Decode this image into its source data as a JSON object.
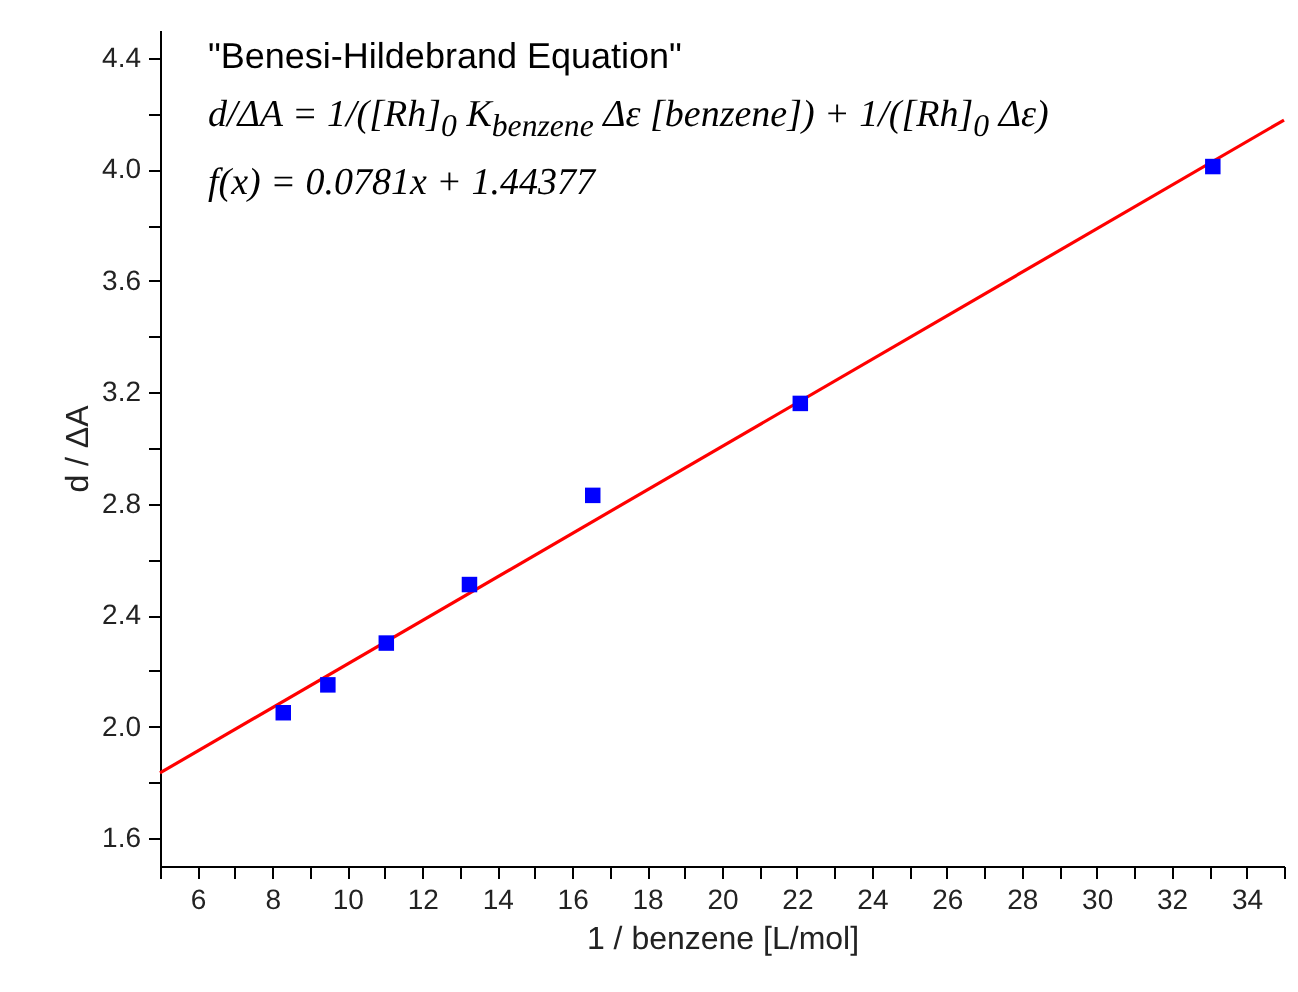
{
  "chart_data": {
    "type": "scatter",
    "xlabel": "1 / benzene [L/mol]",
    "ylabel": "d / ΔA",
    "annotations": [
      "\"Benesi-Hildebrand Equation\"",
      "d/ΔA = 1/([Rh]$_{0}$ K$_{benzene}$ Δε [benzene]) + 1/([Rh]$_{0}$ Δε)",
      "f(x) = 0.0781x + 1.44377"
    ],
    "series": [
      {
        "type": "scatter",
        "color": "#0000ff",
        "marker": "square",
        "x": [
          8.29,
          9.48,
          11.04,
          13.26,
          16.55,
          22.09,
          33.1
        ],
        "values": [
          2.05,
          2.15,
          2.3,
          2.51,
          2.83,
          3.16,
          4.01
        ]
      },
      {
        "type": "line",
        "color": "#ff0000",
        "line_style": "solid",
        "x": [
          5,
          35
        ],
        "values": [
          1.834,
          4.177
        ]
      }
    ],
    "xlim": [
      5,
      35
    ],
    "ylim": [
      1.5,
      4.5
    ],
    "xticks": [
      {
        "value": 5,
        "label": null
      },
      6,
      {
        "value": 7,
        "label": null
      },
      8,
      {
        "value": 9,
        "label": null
      },
      10,
      {
        "value": 11,
        "label": null
      },
      12,
      {
        "value": 13,
        "label": null
      },
      14,
      {
        "value": 15,
        "label": null
      },
      16,
      {
        "value": 17,
        "label": null
      },
      18,
      {
        "value": 19,
        "label": null
      },
      20,
      {
        "value": 21,
        "label": null
      },
      22,
      {
        "value": 23,
        "label": null
      },
      24,
      {
        "value": 25,
        "label": null
      },
      26,
      {
        "value": 27,
        "label": null
      },
      28,
      {
        "value": 29,
        "label": null
      },
      30,
      {
        "value": 31,
        "label": null
      },
      32,
      {
        "value": 33,
        "label": null
      },
      34,
      {
        "value": 35,
        "label": null
      }
    ],
    "yticks": [
      {
        "value": 1.6,
        "label": "1.6"
      },
      {
        "value": 1.8,
        "label": null
      },
      {
        "value": 2.0,
        "label": "2.0"
      },
      {
        "value": 2.2,
        "label": null
      },
      {
        "value": 2.4,
        "label": "2.4"
      },
      {
        "value": 2.6,
        "label": null
      },
      {
        "value": 2.8,
        "label": "2.8"
      },
      {
        "value": 3.0,
        "label": null
      },
      {
        "value": 3.2,
        "label": "3.2"
      },
      {
        "value": 3.4,
        "label": null
      },
      {
        "value": 3.6,
        "label": "3.6"
      },
      {
        "value": 3.8,
        "label": null
      },
      {
        "value": 4.0,
        "label": "4.0"
      },
      {
        "value": 4.2,
        "label": null
      },
      {
        "value": 4.4,
        "label": "4.4"
      }
    ],
    "grid": false
  }
}
